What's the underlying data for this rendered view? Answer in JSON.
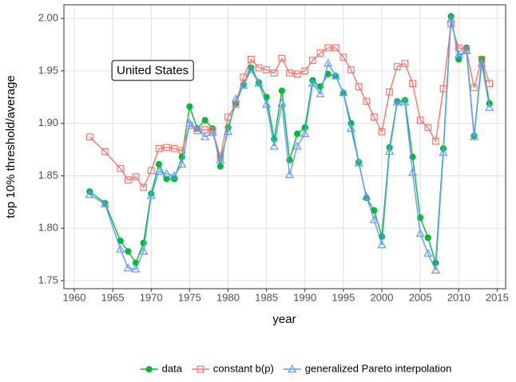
{
  "chart_data": {
    "type": "line",
    "xlabel": "year",
    "ylabel": "top 10% threshold/average",
    "annotation": "United States",
    "grid": true,
    "xlim": [
      1958.65,
      2016.1
    ],
    "ylim": [
      1.7424,
      2.013
    ],
    "xticks": [
      1960,
      1965,
      1970,
      1975,
      1980,
      1985,
      1990,
      1995,
      2000,
      2005,
      2010,
      2015
    ],
    "yticks": [
      1.75,
      {
        "value": 1.8,
        "label": "1.80"
      },
      1.85,
      {
        "value": 1.9,
        "label": "1.90"
      },
      1.95,
      {
        "value": 2.0,
        "label": "2.00"
      }
    ],
    "legend": "bottom",
    "x": [
      1962,
      1964,
      1966,
      1967,
      1968,
      1969,
      1970,
      1971,
      1972,
      1973,
      1974,
      1975,
      1976,
      1977,
      1978,
      1979,
      1980,
      1981,
      1982,
      1983,
      1984,
      1985,
      1986,
      1987,
      1988,
      1989,
      1990,
      1991,
      1992,
      1993,
      1994,
      1995,
      1996,
      1997,
      1998,
      1999,
      2000,
      2001,
      2002,
      2003,
      2004,
      2005,
      2006,
      2007,
      2008,
      2009,
      2010,
      2011,
      2012,
      2013,
      2014
    ],
    "series": [
      {
        "name": "data",
        "color": "#00BA38",
        "marker": "circle",
        "values": [
          1.835,
          1.824,
          1.788,
          1.778,
          1.767,
          1.786,
          1.833,
          1.861,
          1.847,
          1.847,
          1.868,
          1.916,
          1.895,
          1.903,
          1.895,
          1.859,
          1.896,
          1.919,
          1.937,
          1.953,
          1.939,
          1.925,
          1.885,
          1.931,
          1.865,
          1.89,
          1.896,
          1.941,
          1.935,
          1.947,
          1.945,
          1.929,
          1.9,
          1.863,
          1.829,
          1.817,
          1.792,
          1.877,
          1.921,
          1.922,
          1.868,
          1.81,
          1.791,
          1.767,
          1.876,
          2.002,
          1.961,
          1.972,
          1.888,
          1.961,
          1.919
        ]
      },
      {
        "name": "constant b(p)",
        "color": "#F8766D",
        "marker": "square",
        "values": [
          1.887,
          1.873,
          1.857,
          1.846,
          1.849,
          1.839,
          1.855,
          1.876,
          1.877,
          1.876,
          1.874,
          1.898,
          1.893,
          1.894,
          1.893,
          1.868,
          1.906,
          1.918,
          1.944,
          1.961,
          1.953,
          1.951,
          1.948,
          1.962,
          1.948,
          1.947,
          1.95,
          1.96,
          1.967,
          1.972,
          1.972,
          1.963,
          1.951,
          1.935,
          1.921,
          1.906,
          1.892,
          1.93,
          1.954,
          1.957,
          1.938,
          1.903,
          1.896,
          1.883,
          1.933,
          1.995,
          1.972,
          1.97,
          1.934,
          1.961,
          1.938
        ]
      },
      {
        "name": "generalized Pareto interpolation",
        "color": "#619CFF",
        "marker": "triangle",
        "values": [
          1.832,
          1.823,
          1.78,
          1.762,
          1.761,
          1.778,
          1.831,
          1.854,
          1.852,
          1.85,
          1.861,
          1.9,
          1.895,
          1.887,
          1.891,
          1.865,
          1.892,
          1.923,
          1.936,
          1.951,
          1.938,
          1.918,
          1.878,
          1.919,
          1.851,
          1.878,
          1.89,
          1.938,
          1.928,
          1.957,
          1.945,
          1.929,
          1.895,
          1.862,
          1.83,
          1.808,
          1.784,
          1.873,
          1.92,
          1.92,
          1.853,
          1.795,
          1.776,
          1.76,
          1.872,
          1.999,
          1.965,
          1.969,
          1.887,
          1.957,
          1.915
        ]
      }
    ]
  }
}
